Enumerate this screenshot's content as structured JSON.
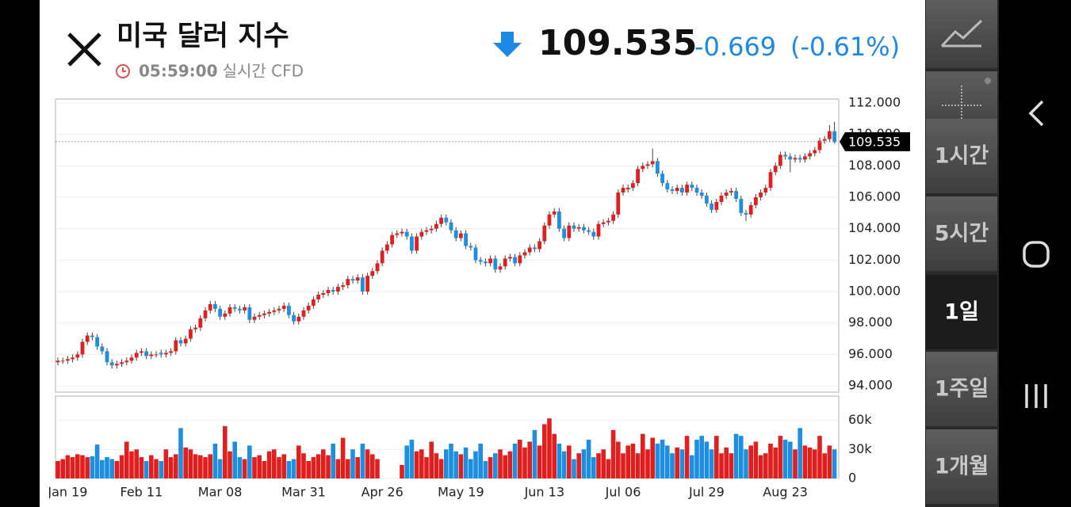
{
  "header": {
    "title": "미국 달러 지수",
    "time": "05:59:00",
    "source": "- 실시간 CFD",
    "price": "109.535",
    "change": "-0.669",
    "change_pct": "(-0.61%)"
  },
  "sidebar": {
    "buttons": [
      "1시간",
      "5시간",
      "1일",
      "1주일",
      "1개월"
    ]
  },
  "chart_data": {
    "type": "candlestick",
    "up_color": "#e0201f",
    "down_color": "#1e8fe0",
    "ylim": [
      93.6,
      112.25
    ],
    "yticks": [
      {
        "value": 94,
        "label": "94.000"
      },
      {
        "value": 96,
        "label": "96.000"
      },
      {
        "value": 98,
        "label": "98.000"
      },
      {
        "value": 100,
        "label": "100.000"
      },
      {
        "value": 102,
        "label": "102.000"
      },
      {
        "value": 104,
        "label": "104.000"
      },
      {
        "value": 106,
        "label": "106.000"
      },
      {
        "value": 108,
        "label": "108.000"
      },
      {
        "value": 110,
        "label": "110.000"
      },
      {
        "value": 112,
        "label": "112.000"
      }
    ],
    "last_price": 109.535,
    "volume_ylim": [
      0,
      85000
    ],
    "volume_yticks": [
      0,
      {
        "value": 30000,
        "label": "30k"
      },
      {
        "value": 60000,
        "label": "60k"
      }
    ],
    "categories": [
      null,
      null,
      "Jan 19",
      null,
      null,
      null,
      null,
      null,
      null,
      null,
      null,
      null,
      null,
      null,
      null,
      null,
      null,
      "Feb 11",
      null,
      null,
      null,
      null,
      null,
      null,
      null,
      null,
      null,
      null,
      null,
      null,
      null,
      null,
      null,
      "Mar 08",
      null,
      null,
      null,
      null,
      null,
      null,
      null,
      null,
      null,
      null,
      null,
      null,
      null,
      null,
      null,
      null,
      "Mar 31",
      null,
      null,
      null,
      null,
      null,
      null,
      null,
      null,
      null,
      null,
      null,
      null,
      null,
      null,
      null,
      "Apr 26",
      null,
      null,
      null,
      null,
      null,
      null,
      null,
      null,
      null,
      null,
      null,
      null,
      null,
      null,
      null,
      "May 19",
      null,
      null,
      null,
      null,
      null,
      null,
      null,
      null,
      null,
      null,
      null,
      null,
      null,
      null,
      null,
      null,
      "Jun 13",
      null,
      null,
      null,
      null,
      null,
      null,
      null,
      null,
      null,
      null,
      null,
      null,
      null,
      null,
      null,
      "Jul 06",
      null,
      null,
      null,
      null,
      null,
      null,
      null,
      null,
      null,
      null,
      null,
      null,
      null,
      null,
      null,
      null,
      "Jul 29",
      null,
      null,
      null,
      null,
      null,
      null,
      null,
      null,
      null,
      null,
      null,
      null,
      null,
      null,
      null,
      "Aug 23",
      null,
      null,
      null,
      null,
      null,
      null,
      null,
      null,
      null,
      null
    ],
    "candles": [
      [
        95.5,
        95.8,
        95.3,
        95.6
      ],
      [
        95.6,
        95.8,
        95.4,
        95.6
      ],
      [
        95.6,
        95.9,
        95.4,
        95.7
      ],
      [
        95.7,
        96.0,
        95.5,
        95.8
      ],
      [
        95.8,
        96.2,
        95.6,
        96.0
      ],
      [
        96.0,
        97.0,
        95.8,
        96.8
      ],
      [
        96.8,
        97.4,
        96.6,
        97.2
      ],
      [
        97.2,
        97.4,
        96.9,
        97.1
      ],
      [
        97.1,
        97.3,
        96.3,
        96.5
      ],
      [
        96.5,
        96.7,
        96.0,
        96.2
      ],
      [
        96.2,
        96.4,
        95.3,
        95.5
      ],
      [
        95.5,
        95.7,
        95.1,
        95.3
      ],
      [
        95.3,
        95.6,
        95.1,
        95.4
      ],
      [
        95.4,
        95.7,
        95.2,
        95.5
      ],
      [
        95.5,
        95.8,
        95.3,
        95.6
      ],
      [
        95.6,
        96.0,
        95.4,
        95.8
      ],
      [
        95.8,
        96.3,
        95.6,
        96.1
      ],
      [
        96.1,
        96.4,
        95.9,
        96.2
      ],
      [
        96.2,
        96.4,
        95.7,
        95.9
      ],
      [
        95.9,
        96.2,
        95.7,
        96.0
      ],
      [
        96.0,
        96.2,
        95.8,
        96.0
      ],
      [
        96.1,
        96.3,
        95.8,
        96.0
      ],
      [
        96.0,
        96.3,
        95.8,
        96.1
      ],
      [
        96.1,
        96.4,
        95.9,
        96.2
      ],
      [
        96.2,
        97.1,
        96.0,
        96.9
      ],
      [
        96.9,
        97.1,
        96.5,
        96.7
      ],
      [
        96.7,
        97.2,
        96.5,
        97.0
      ],
      [
        97.0,
        97.8,
        96.8,
        97.6
      ],
      [
        97.6,
        97.9,
        97.4,
        97.7
      ],
      [
        97.7,
        98.5,
        97.5,
        98.3
      ],
      [
        98.3,
        99.0,
        98.1,
        98.8
      ],
      [
        98.8,
        99.4,
        98.6,
        99.2
      ],
      [
        99.2,
        99.4,
        98.7,
        98.9
      ],
      [
        98.9,
        99.1,
        98.2,
        98.4
      ],
      [
        98.4,
        98.8,
        98.2,
        98.6
      ],
      [
        98.6,
        99.2,
        98.4,
        99.0
      ],
      [
        99.0,
        99.2,
        98.7,
        98.9
      ],
      [
        98.9,
        99.1,
        98.6,
        98.8
      ],
      [
        98.8,
        99.2,
        98.6,
        99.0
      ],
      [
        99.0,
        99.2,
        98.0,
        98.2
      ],
      [
        98.2,
        98.6,
        98.0,
        98.4
      ],
      [
        98.4,
        98.7,
        98.2,
        98.5
      ],
      [
        98.5,
        98.8,
        98.3,
        98.6
      ],
      [
        98.6,
        98.9,
        98.4,
        98.7
      ],
      [
        98.7,
        99.0,
        98.5,
        98.8
      ],
      [
        98.8,
        99.1,
        98.6,
        98.9
      ],
      [
        98.9,
        99.3,
        98.7,
        99.1
      ],
      [
        99.1,
        99.3,
        98.3,
        98.5
      ],
      [
        98.5,
        98.7,
        97.9,
        98.1
      ],
      [
        98.1,
        98.6,
        97.9,
        98.4
      ],
      [
        98.4,
        99.0,
        98.2,
        98.8
      ],
      [
        98.8,
        99.3,
        98.6,
        99.1
      ],
      [
        99.1,
        99.7,
        98.9,
        99.5
      ],
      [
        99.5,
        100.0,
        99.3,
        99.8
      ],
      [
        99.8,
        100.1,
        99.6,
        99.9
      ],
      [
        99.9,
        100.3,
        99.7,
        100.1
      ],
      [
        100.1,
        100.3,
        99.8,
        100.0
      ],
      [
        100.0,
        100.5,
        99.8,
        100.3
      ],
      [
        100.3,
        100.6,
        100.1,
        100.4
      ],
      [
        100.4,
        101.0,
        100.2,
        100.8
      ],
      [
        100.8,
        101.0,
        100.5,
        100.7
      ],
      [
        100.7,
        101.1,
        100.5,
        100.9
      ],
      [
        100.9,
        101.1,
        99.8,
        100.0
      ],
      [
        100.0,
        101.2,
        99.8,
        101.0
      ],
      [
        101.0,
        101.5,
        100.8,
        101.3
      ],
      [
        101.3,
        102.0,
        101.1,
        101.8
      ],
      [
        101.8,
        102.8,
        101.6,
        102.6
      ],
      [
        102.6,
        103.2,
        102.4,
        103.0
      ],
      [
        103.0,
        103.8,
        102.8,
        103.6
      ],
      [
        103.6,
        103.9,
        103.4,
        103.7
      ],
      [
        103.7,
        104.0,
        103.5,
        103.8
      ],
      [
        103.8,
        104.0,
        103.3,
        103.5
      ],
      [
        103.5,
        103.7,
        102.4,
        102.6
      ],
      [
        102.6,
        103.7,
        102.4,
        103.5
      ],
      [
        103.5,
        104.0,
        103.3,
        103.8
      ],
      [
        103.8,
        104.1,
        103.6,
        103.9
      ],
      [
        103.9,
        104.2,
        103.7,
        104.0
      ],
      [
        104.0,
        104.5,
        103.8,
        104.3
      ],
      [
        104.3,
        104.9,
        104.1,
        104.7
      ],
      [
        104.7,
        104.9,
        104.2,
        104.4
      ],
      [
        104.4,
        104.6,
        103.7,
        103.9
      ],
      [
        103.9,
        104.1,
        103.2,
        103.4
      ],
      [
        103.4,
        103.9,
        103.2,
        103.7
      ],
      [
        103.7,
        103.9,
        102.7,
        102.9
      ],
      [
        102.9,
        103.1,
        102.6,
        102.8
      ],
      [
        102.8,
        103.0,
        101.8,
        102.0
      ],
      [
        102.0,
        102.2,
        101.7,
        101.9
      ],
      [
        101.9,
        102.1,
        101.6,
        101.8
      ],
      [
        101.8,
        102.3,
        101.6,
        102.1
      ],
      [
        102.1,
        102.3,
        101.2,
        101.4
      ],
      [
        101.4,
        101.8,
        101.2,
        101.6
      ],
      [
        101.6,
        102.3,
        101.4,
        102.1
      ],
      [
        102.1,
        102.4,
        101.9,
        102.2
      ],
      [
        102.2,
        102.4,
        101.6,
        101.8
      ],
      [
        101.8,
        102.5,
        101.6,
        102.3
      ],
      [
        102.3,
        102.7,
        102.1,
        102.5
      ],
      [
        102.5,
        103.0,
        102.3,
        102.8
      ],
      [
        102.8,
        103.0,
        102.5,
        102.7
      ],
      [
        102.7,
        103.4,
        102.5,
        103.2
      ],
      [
        103.2,
        104.4,
        103.0,
        104.2
      ],
      [
        104.2,
        105.1,
        104.0,
        104.9
      ],
      [
        104.9,
        105.3,
        104.7,
        105.1
      ],
      [
        105.1,
        105.3,
        103.8,
        104.0
      ],
      [
        104.0,
        104.2,
        103.2,
        103.4
      ],
      [
        103.4,
        104.4,
        103.2,
        104.2
      ],
      [
        104.2,
        104.4,
        103.8,
        104.0
      ],
      [
        104.0,
        104.3,
        103.8,
        104.1
      ],
      [
        104.1,
        104.3,
        103.7,
        103.9
      ],
      [
        103.9,
        104.1,
        103.6,
        103.8
      ],
      [
        103.8,
        104.0,
        103.3,
        103.5
      ],
      [
        103.5,
        104.5,
        103.3,
        104.3
      ],
      [
        104.3,
        104.6,
        104.1,
        104.4
      ],
      [
        104.4,
        104.7,
        104.2,
        104.5
      ],
      [
        104.5,
        105.1,
        104.3,
        104.9
      ],
      [
        104.9,
        106.5,
        104.7,
        106.3
      ],
      [
        106.3,
        106.8,
        106.1,
        106.6
      ],
      [
        106.5,
        106.8,
        106.3,
        106.6
      ],
      [
        106.6,
        107.1,
        106.4,
        106.9
      ],
      [
        106.9,
        108.0,
        106.7,
        107.8
      ],
      [
        107.8,
        108.2,
        107.6,
        108.0
      ],
      [
        108.0,
        108.3,
        107.8,
        108.1
      ],
      [
        108.1,
        109.1,
        107.9,
        108.3
      ],
      [
        108.3,
        108.5,
        107.3,
        107.5
      ],
      [
        107.5,
        107.7,
        106.7,
        106.9
      ],
      [
        106.9,
        107.1,
        106.3,
        106.5
      ],
      [
        106.5,
        106.7,
        106.2,
        106.4
      ],
      [
        106.4,
        106.8,
        106.2,
        106.6
      ],
      [
        106.6,
        106.8,
        106.1,
        106.3
      ],
      [
        106.3,
        107.0,
        106.1,
        106.8
      ],
      [
        106.8,
        107.0,
        106.4,
        106.6
      ],
      [
        106.6,
        106.8,
        106.1,
        106.3
      ],
      [
        106.3,
        106.5,
        105.9,
        106.1
      ],
      [
        106.1,
        106.3,
        105.4,
        105.6
      ],
      [
        105.6,
        105.8,
        105.0,
        105.2
      ],
      [
        105.2,
        105.9,
        105.0,
        105.7
      ],
      [
        105.7,
        106.3,
        105.5,
        106.1
      ],
      [
        106.1,
        106.5,
        105.9,
        106.3
      ],
      [
        106.3,
        106.6,
        106.1,
        106.4
      ],
      [
        106.4,
        106.6,
        105.7,
        105.9
      ],
      [
        105.9,
        106.1,
        104.8,
        105.0
      ],
      [
        105.0,
        105.2,
        104.5,
        104.9
      ],
      [
        104.9,
        105.7,
        104.7,
        105.5
      ],
      [
        105.5,
        106.2,
        105.3,
        106.0
      ],
      [
        106.0,
        106.5,
        105.8,
        106.3
      ],
      [
        106.3,
        106.8,
        106.1,
        106.6
      ],
      [
        106.6,
        107.8,
        106.4,
        107.6
      ],
      [
        107.6,
        108.2,
        107.4,
        108.0
      ],
      [
        108.0,
        108.9,
        107.8,
        108.7
      ],
      [
        108.7,
        108.9,
        108.4,
        108.6
      ],
      [
        108.6,
        108.8,
        107.6,
        108.4
      ],
      [
        108.4,
        108.7,
        108.2,
        108.5
      ],
      [
        108.5,
        108.7,
        108.2,
        108.4
      ],
      [
        108.4,
        108.8,
        108.2,
        108.6
      ],
      [
        108.6,
        109.0,
        108.4,
        108.8
      ],
      [
        108.8,
        109.2,
        108.6,
        109.0
      ],
      [
        109.0,
        109.8,
        108.8,
        109.6
      ],
      [
        109.6,
        109.9,
        109.4,
        109.7
      ],
      [
        109.7,
        110.6,
        109.5,
        110.2
      ],
      [
        110.2,
        110.8,
        109.4,
        109.5
      ]
    ],
    "volumes": [
      18000,
      20000,
      24000,
      22000,
      25000,
      24000,
      22000,
      23000,
      35000,
      19000,
      22000,
      20000,
      18000,
      24000,
      38000,
      28000,
      30000,
      22000,
      18000,
      24000,
      20000,
      18000,
      30000,
      22000,
      25000,
      52000,
      32000,
      30000,
      25000,
      24000,
      22000,
      25000,
      36000,
      20000,
      54000,
      28000,
      38000,
      22000,
      20000,
      34000,
      22000,
      24000,
      18000,
      28000,
      30000,
      22000,
      25000,
      18000,
      20000,
      34000,
      26000,
      18000,
      22000,
      25000,
      30000,
      24000,
      36000,
      20000,
      42000,
      20000,
      30000,
      22000,
      36000,
      30000,
      25000,
      20000,
      0,
      0,
      0,
      0,
      14000,
      34000,
      40000,
      28000,
      30000,
      22000,
      38000,
      26000,
      20000,
      30000,
      36000,
      28000,
      25000,
      32000,
      20000,
      28000,
      36000,
      18000,
      22000,
      26000,
      30000,
      24000,
      28000,
      36000,
      40000,
      32000,
      38000,
      50000,
      34000,
      56000,
      62000,
      46000,
      36000,
      28000,
      34000,
      20000,
      26000,
      30000,
      40000,
      22000,
      26000,
      30000,
      20000,
      50000,
      38000,
      26000,
      34000,
      36000,
      26000,
      46000,
      30000,
      42000,
      36000,
      40000,
      34000,
      26000,
      32000,
      30000,
      44000,
      24000,
      40000,
      44000,
      38000,
      30000,
      44000,
      26000,
      32000,
      26000,
      46000,
      44000,
      30000,
      34000,
      38000,
      24000,
      26000,
      36000,
      32000,
      44000,
      40000,
      38000,
      30000,
      52000,
      34000,
      32000,
      30000,
      44000,
      26000,
      34000,
      30000
    ]
  }
}
